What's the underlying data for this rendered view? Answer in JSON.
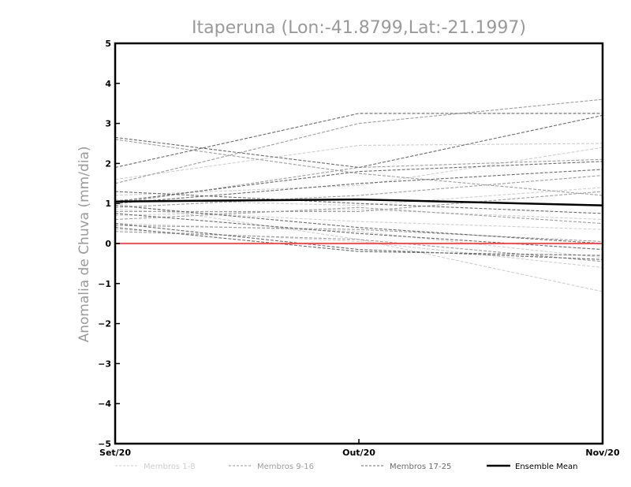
{
  "chart_data": {
    "type": "line",
    "title": "Itaperuna (Lon:-41.8799,Lat:-21.1997)",
    "xlabel": "",
    "ylabel": "Anomalia de Chuva (mm/dia)",
    "categories": [
      "Set/20",
      "Out/20",
      "Nov/20"
    ],
    "ylim": [
      -5,
      5
    ],
    "yticks": [
      -5,
      -4,
      -3,
      -2,
      -1,
      0,
      1,
      2,
      3,
      4,
      5
    ],
    "grid": false,
    "legend_position": "bottom",
    "colors": {
      "group1": "#cfcfcf",
      "group2": "#9e9e9e",
      "group3": "#6b6b6b",
      "mean": "#000000",
      "zero": "#ff3b3b"
    },
    "reference_line": {
      "name": "Zero",
      "value": 0,
      "color": "#ff3b3b"
    },
    "legend": [
      {
        "key": "group1",
        "label": "Membros 1-8"
      },
      {
        "key": "group2",
        "label": "Membros 9-16"
      },
      {
        "key": "group3",
        "label": "Membros 17-25"
      },
      {
        "key": "mean",
        "label": "Ensemble Mean"
      }
    ],
    "series": [
      {
        "name": "Membro 1",
        "group": "group1",
        "values": [
          1.6,
          2.45,
          2.5
        ]
      },
      {
        "name": "Membro 2",
        "group": "group1",
        "values": [
          1.2,
          1.45,
          2.4
        ]
      },
      {
        "name": "Membro 3",
        "group": "group1",
        "values": [
          1.0,
          0.1,
          -1.2
        ]
      },
      {
        "name": "Membro 4",
        "group": "group1",
        "values": [
          0.7,
          0.85,
          0.6
        ]
      },
      {
        "name": "Membro 5",
        "group": "group1",
        "values": [
          0.5,
          0.3,
          -0.35
        ]
      },
      {
        "name": "Membro 6",
        "group": "group1",
        "values": [
          0.35,
          0.05,
          -0.6
        ]
      },
      {
        "name": "Membro 7",
        "group": "group1",
        "values": [
          1.1,
          0.95,
          1.4
        ]
      },
      {
        "name": "Membro 8",
        "group": "group1",
        "values": [
          0.85,
          0.55,
          0.35
        ]
      },
      {
        "name": "Membro 9",
        "group": "group2",
        "values": [
          1.5,
          3.0,
          3.6
        ]
      },
      {
        "name": "Membro 10",
        "group": "group2",
        "values": [
          1.0,
          1.9,
          2.1
        ]
      },
      {
        "name": "Membro 11",
        "group": "group2",
        "values": [
          0.9,
          1.2,
          1.7
        ]
      },
      {
        "name": "Membro 12",
        "group": "group2",
        "values": [
          0.8,
          0.8,
          1.3
        ]
      },
      {
        "name": "Membro 13",
        "group": "group2",
        "values": [
          0.6,
          0.9,
          0.5
        ]
      },
      {
        "name": "Membro 14",
        "group": "group2",
        "values": [
          0.45,
          0.35,
          0.05
        ]
      },
      {
        "name": "Membro 15",
        "group": "group2",
        "values": [
          0.3,
          0.1,
          -0.45
        ]
      },
      {
        "name": "Membro 16",
        "group": "group2",
        "values": [
          2.6,
          1.75,
          1.2
        ]
      },
      {
        "name": "Membro 17",
        "group": "group3",
        "values": [
          1.9,
          3.25,
          3.25
        ]
      },
      {
        "name": "Membro 18",
        "group": "group3",
        "values": [
          2.65,
          1.9,
          3.2
        ]
      },
      {
        "name": "Membro 19",
        "group": "group3",
        "values": [
          1.05,
          1.8,
          2.05
        ]
      },
      {
        "name": "Membro 20",
        "group": "group3",
        "values": [
          1.0,
          1.5,
          1.85
        ]
      },
      {
        "name": "Membro 21",
        "group": "group3",
        "values": [
          1.3,
          1.0,
          0.75
        ]
      },
      {
        "name": "Membro 22",
        "group": "group3",
        "values": [
          0.95,
          0.4,
          0.0
        ]
      },
      {
        "name": "Membro 23",
        "group": "group3",
        "values": [
          0.75,
          0.25,
          -0.15
        ]
      },
      {
        "name": "Membro 24",
        "group": "group3",
        "values": [
          0.5,
          -0.15,
          -0.4
        ]
      },
      {
        "name": "Membro 25",
        "group": "group3",
        "values": [
          0.4,
          -0.2,
          -0.3
        ]
      },
      {
        "name": "Ensemble Mean",
        "group": "mean",
        "values": [
          1.05,
          1.1,
          0.95
        ]
      }
    ]
  }
}
